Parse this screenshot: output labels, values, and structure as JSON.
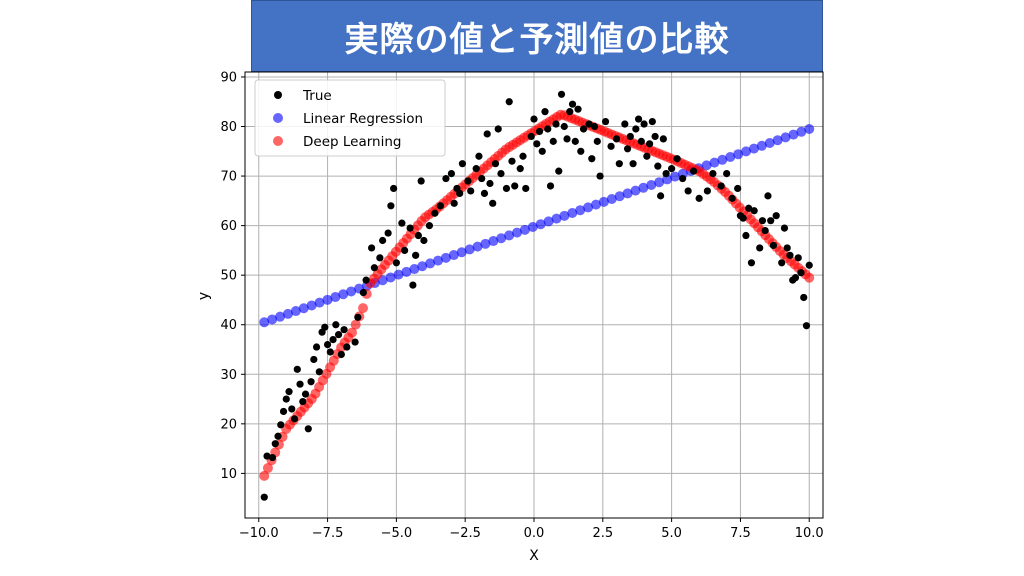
{
  "banner": {
    "title": "実際の値と予測値の比較",
    "background": "#4472c4"
  },
  "chart_data": {
    "type": "scatter",
    "xlabel": "X",
    "ylabel": "y",
    "xlim": [
      -10.5,
      10.5
    ],
    "ylim": [
      1,
      91
    ],
    "x_ticks": [
      -10.0,
      -7.5,
      -5.0,
      -2.5,
      0.0,
      2.5,
      5.0,
      7.5,
      10.0
    ],
    "x_tick_labels": [
      "−10.0",
      "−7.5",
      "−5.0",
      "−2.5",
      "0.0",
      "2.5",
      "5.0",
      "7.5",
      "10.0"
    ],
    "y_ticks": [
      10,
      20,
      30,
      40,
      50,
      60,
      70,
      80,
      90
    ],
    "y_tick_labels": [
      "10",
      "20",
      "30",
      "40",
      "50",
      "60",
      "70",
      "80",
      "90"
    ],
    "grid": true,
    "legend_position": "top-left",
    "series": [
      {
        "name": "True",
        "color": "#000000",
        "points": [
          [
            -9.8,
            5.2
          ],
          [
            -9.7,
            13.5
          ],
          [
            -9.5,
            13.2
          ],
          [
            -9.4,
            16.0
          ],
          [
            -9.3,
            17.5
          ],
          [
            -9.2,
            19.8
          ],
          [
            -9.1,
            22.5
          ],
          [
            -9.0,
            25.0
          ],
          [
            -8.9,
            26.5
          ],
          [
            -8.8,
            23.0
          ],
          [
            -8.7,
            21.0
          ],
          [
            -8.6,
            31.0
          ],
          [
            -8.5,
            28.0
          ],
          [
            -8.4,
            24.5
          ],
          [
            -8.3,
            26.0
          ],
          [
            -8.2,
            19.0
          ],
          [
            -8.1,
            28.5
          ],
          [
            -8.0,
            33.0
          ],
          [
            -7.9,
            35.5
          ],
          [
            -7.8,
            30.5
          ],
          [
            -7.7,
            38.5
          ],
          [
            -7.6,
            39.5
          ],
          [
            -7.5,
            36.0
          ],
          [
            -7.4,
            34.5
          ],
          [
            -7.3,
            37.0
          ],
          [
            -7.2,
            40.0
          ],
          [
            -7.1,
            38.0
          ],
          [
            -7.0,
            34.0
          ],
          [
            -6.9,
            39.0
          ],
          [
            -6.8,
            35.5
          ],
          [
            -6.5,
            36.5
          ],
          [
            -6.4,
            41.5
          ],
          [
            -6.2,
            46.5
          ],
          [
            -6.1,
            49.0
          ],
          [
            -5.9,
            55.5
          ],
          [
            -5.8,
            51.5
          ],
          [
            -5.6,
            53.5
          ],
          [
            -5.5,
            57.0
          ],
          [
            -5.3,
            58.5
          ],
          [
            -5.2,
            64.0
          ],
          [
            -5.1,
            67.5
          ],
          [
            -5.0,
            52.5
          ],
          [
            -4.8,
            60.5
          ],
          [
            -4.7,
            55.0
          ],
          [
            -4.5,
            59.5
          ],
          [
            -4.4,
            48.0
          ],
          [
            -4.3,
            54.0
          ],
          [
            -4.2,
            58.0
          ],
          [
            -4.1,
            69.0
          ],
          [
            -4.0,
            57.0
          ],
          [
            -3.8,
            60.0
          ],
          [
            -3.6,
            62.5
          ],
          [
            -3.4,
            64.0
          ],
          [
            -3.2,
            69.5
          ],
          [
            -3.0,
            70.5
          ],
          [
            -2.9,
            64.5
          ],
          [
            -2.8,
            67.5
          ],
          [
            -2.7,
            66.5
          ],
          [
            -2.6,
            72.5
          ],
          [
            -2.4,
            69.0
          ],
          [
            -2.3,
            67.0
          ],
          [
            -2.1,
            71.5
          ],
          [
            -2.0,
            74.0
          ],
          [
            -1.9,
            69.5
          ],
          [
            -1.8,
            66.5
          ],
          [
            -1.7,
            78.5
          ],
          [
            -1.6,
            68.5
          ],
          [
            -1.5,
            64.5
          ],
          [
            -1.4,
            72.5
          ],
          [
            -1.3,
            79.5
          ],
          [
            -1.2,
            70.5
          ],
          [
            -1.0,
            67.5
          ],
          [
            -0.9,
            85.0
          ],
          [
            -0.8,
            73.0
          ],
          [
            -0.7,
            68.0
          ],
          [
            -0.5,
            71.5
          ],
          [
            -0.4,
            74.0
          ],
          [
            -0.3,
            67.5
          ],
          [
            -0.1,
            78.0
          ],
          [
            0.0,
            81.5
          ],
          [
            0.1,
            76.5
          ],
          [
            0.2,
            79.0
          ],
          [
            0.3,
            75.0
          ],
          [
            0.4,
            83.0
          ],
          [
            0.5,
            79.5
          ],
          [
            0.6,
            68.0
          ],
          [
            0.7,
            77.0
          ],
          [
            0.8,
            80.5
          ],
          [
            0.9,
            71.0
          ],
          [
            1.0,
            86.5
          ],
          [
            1.1,
            80.0
          ],
          [
            1.2,
            77.5
          ],
          [
            1.3,
            83.0
          ],
          [
            1.4,
            84.5
          ],
          [
            1.5,
            77.0
          ],
          [
            1.6,
            83.5
          ],
          [
            1.7,
            75.0
          ],
          [
            1.8,
            79.5
          ],
          [
            2.0,
            80.5
          ],
          [
            2.1,
            73.5
          ],
          [
            2.2,
            80.0
          ],
          [
            2.3,
            77.0
          ],
          [
            2.4,
            70.0
          ],
          [
            2.6,
            81.0
          ],
          [
            2.8,
            76.0
          ],
          [
            3.0,
            77.5
          ],
          [
            3.1,
            72.5
          ],
          [
            3.3,
            80.5
          ],
          [
            3.4,
            75.5
          ],
          [
            3.5,
            78.0
          ],
          [
            3.6,
            72.5
          ],
          [
            3.7,
            79.5
          ],
          [
            3.8,
            81.5
          ],
          [
            3.9,
            77.0
          ],
          [
            4.0,
            80.5
          ],
          [
            4.1,
            74.0
          ],
          [
            4.2,
            76.5
          ],
          [
            4.3,
            81.0
          ],
          [
            4.4,
            78.0
          ],
          [
            4.5,
            72.0
          ],
          [
            4.6,
            66.0
          ],
          [
            4.7,
            77.5
          ],
          [
            4.8,
            70.5
          ],
          [
            5.0,
            71.5
          ],
          [
            5.2,
            73.5
          ],
          [
            5.4,
            69.5
          ],
          [
            5.6,
            67.0
          ],
          [
            5.8,
            71.0
          ],
          [
            6.0,
            65.5
          ],
          [
            6.3,
            67.0
          ],
          [
            6.5,
            70.5
          ],
          [
            6.8,
            68.0
          ],
          [
            7.0,
            70.5
          ],
          [
            7.2,
            65.5
          ],
          [
            7.4,
            67.5
          ],
          [
            7.5,
            62.0
          ],
          [
            7.6,
            61.5
          ],
          [
            7.7,
            58.0
          ],
          [
            7.8,
            63.5
          ],
          [
            7.9,
            52.5
          ],
          [
            8.0,
            63.0
          ],
          [
            8.2,
            55.5
          ],
          [
            8.3,
            61.0
          ],
          [
            8.4,
            59.0
          ],
          [
            8.5,
            66.0
          ],
          [
            8.6,
            61.0
          ],
          [
            8.7,
            56.0
          ],
          [
            8.8,
            62.0
          ],
          [
            9.0,
            52.5
          ],
          [
            9.1,
            59.5
          ],
          [
            9.2,
            55.5
          ],
          [
            9.3,
            54.0
          ],
          [
            9.4,
            49.0
          ],
          [
            9.5,
            49.5
          ],
          [
            9.6,
            53.5
          ],
          [
            9.7,
            50.5
          ],
          [
            9.8,
            45.5
          ],
          [
            9.9,
            39.8
          ],
          [
            10.0,
            52.0
          ]
        ]
      },
      {
        "name": "Linear Regression",
        "color": "#0000ff",
        "x_range": [
          -9.8,
          10.0
        ],
        "line": [
          [
            -9.8,
            40.5
          ],
          [
            10.0,
            79.5
          ]
        ]
      },
      {
        "name": "Deep Learning",
        "color": "#ff0000",
        "curve": [
          [
            -9.8,
            9.5
          ],
          [
            -9.0,
            19.0
          ],
          [
            -8.0,
            25.5
          ],
          [
            -7.0,
            35.5
          ],
          [
            -6.6,
            38.5
          ],
          [
            -6.2,
            43.5
          ],
          [
            -6.0,
            48.0
          ],
          [
            -5.5,
            51.5
          ],
          [
            -4.0,
            61.5
          ],
          [
            -3.5,
            63.5
          ],
          [
            -1.0,
            75.5
          ],
          [
            0.0,
            79.0
          ],
          [
            1.0,
            82.5
          ],
          [
            3.0,
            78.0
          ],
          [
            5.0,
            73.5
          ],
          [
            6.0,
            71.0
          ],
          [
            6.5,
            69.0
          ],
          [
            7.0,
            66.5
          ],
          [
            8.0,
            60.5
          ],
          [
            9.0,
            54.5
          ],
          [
            10.0,
            49.5
          ]
        ]
      }
    ]
  }
}
